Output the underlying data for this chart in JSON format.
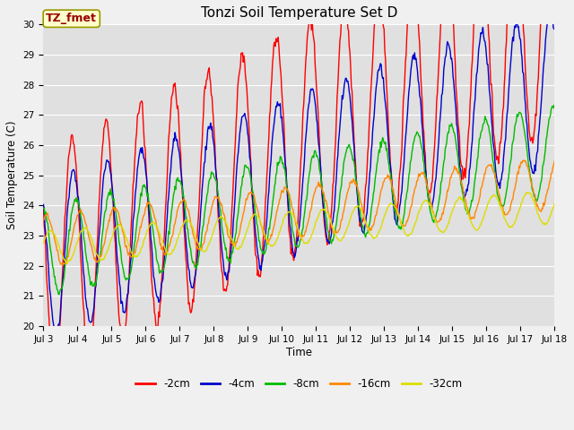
{
  "title": "Tonzi Soil Temperature Set D",
  "xlabel": "Time",
  "ylabel": "Soil Temperature (C)",
  "ylim": [
    20.0,
    30.0
  ],
  "yticks": [
    20.0,
    21.0,
    22.0,
    23.0,
    24.0,
    25.0,
    26.0,
    27.0,
    28.0,
    29.0,
    30.0
  ],
  "xtick_labels": [
    "Jul 3",
    "Jul 4",
    "Jul 5",
    "Jul 6",
    "Jul 7",
    "Jul 8",
    "Jul 9",
    "Jul 10",
    "Jul 11",
    "Jul 12",
    "Jul 13",
    "Jul 14",
    "Jul 15",
    "Jul 16",
    "Jul 17",
    "Jul 18"
  ],
  "colors": {
    "-2cm": "#ff0000",
    "-4cm": "#0000cc",
    "-8cm": "#00bb00",
    "-16cm": "#ff8800",
    "-32cm": "#dddd00"
  },
  "legend_label": "TZ_fmet",
  "fig_bg": "#f0f0f0",
  "plot_bg": "#e0e0e0",
  "grid_color": "#ffffff",
  "n_days": 15,
  "n_per_day": 48,
  "mean_start": [
    22.0,
    22.2,
    22.5,
    22.8,
    22.6
  ],
  "mean_slope": [
    0.55,
    0.38,
    0.22,
    0.13,
    0.09
  ],
  "amplitudes": [
    3.8,
    2.6,
    1.5,
    0.85,
    0.55
  ],
  "phase_hours": [
    14.0,
    15.0,
    17.0,
    20.0,
    23.0
  ],
  "noise_std": [
    0.12,
    0.08,
    0.06,
    0.04,
    0.02
  ]
}
